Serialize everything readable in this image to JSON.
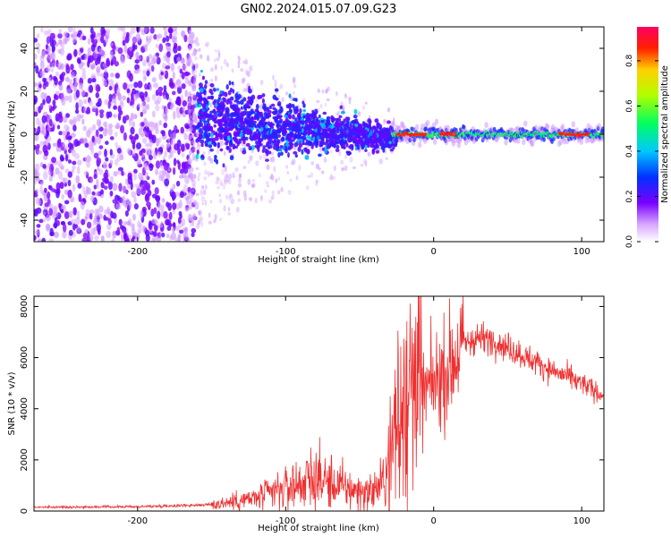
{
  "title": "GN02.2024.015.07.09.G23",
  "colors": {
    "snr_line": "#ee3030",
    "frame": "#000000",
    "background": "#ffffff"
  },
  "chart_data": [
    {
      "type": "heatmap",
      "xlabel": "Height of straight line (km)",
      "ylabel": "Frequency (Hz)",
      "xlim": [
        -270,
        115
      ],
      "ylim": [
        -50,
        50
      ],
      "x_ticks": [
        "-200",
        "-100",
        "0",
        "100"
      ],
      "y_ticks": [
        "-40",
        "-20",
        "0",
        "20",
        "40"
      ],
      "colorbar": {
        "label": "Normalized spectral amplitude",
        "range": [
          0,
          0.95
        ],
        "ticks": [
          "0.0",
          "0.2",
          "0.4",
          "0.6",
          "0.8"
        ],
        "colormap": "rainbow (white-violet-blue-cyan-green-yellow-red-magenta)"
      },
      "description_regions": [
        {
          "x_range": [
            -270,
            -160
          ],
          "freq_spread": 50,
          "amplitude": 0.1
        },
        {
          "x_range": [
            -160,
            -25
          ],
          "freq_spread_start": 20,
          "freq_spread_end": 5,
          "amplitude": 0.25
        },
        {
          "x_range": [
            -25,
            115
          ],
          "freq_spread": 2,
          "amplitude": 0.55
        }
      ],
      "peak_amplitude_segments": [
        [
          -25,
          -5
        ],
        [
          5,
          15
        ],
        [
          85,
          105
        ]
      ]
    },
    {
      "type": "line",
      "xlabel": "Height of straight line (km)",
      "ylabel": "SNR (10 * v/v)",
      "xlim": [
        -270,
        115
      ],
      "ylim": [
        0,
        8400
      ],
      "x_ticks": [
        "-200",
        "-100",
        "0",
        "100"
      ],
      "y_ticks": [
        "0",
        "2000",
        "4000",
        "6000",
        "8000"
      ],
      "x": [
        -270,
        -200,
        -150,
        -120,
        -100,
        -80,
        -60,
        -45,
        -35,
        -28,
        -22,
        -15,
        -10,
        0,
        10,
        20,
        30,
        40,
        60,
        80,
        100,
        115
      ],
      "values": [
        150,
        170,
        250,
        500,
        900,
        1300,
        900,
        700,
        1000,
        2500,
        3500,
        4000,
        4400,
        5000,
        5600,
        6500,
        6800,
        6700,
        6100,
        5500,
        5000,
        4500
      ]
    }
  ]
}
